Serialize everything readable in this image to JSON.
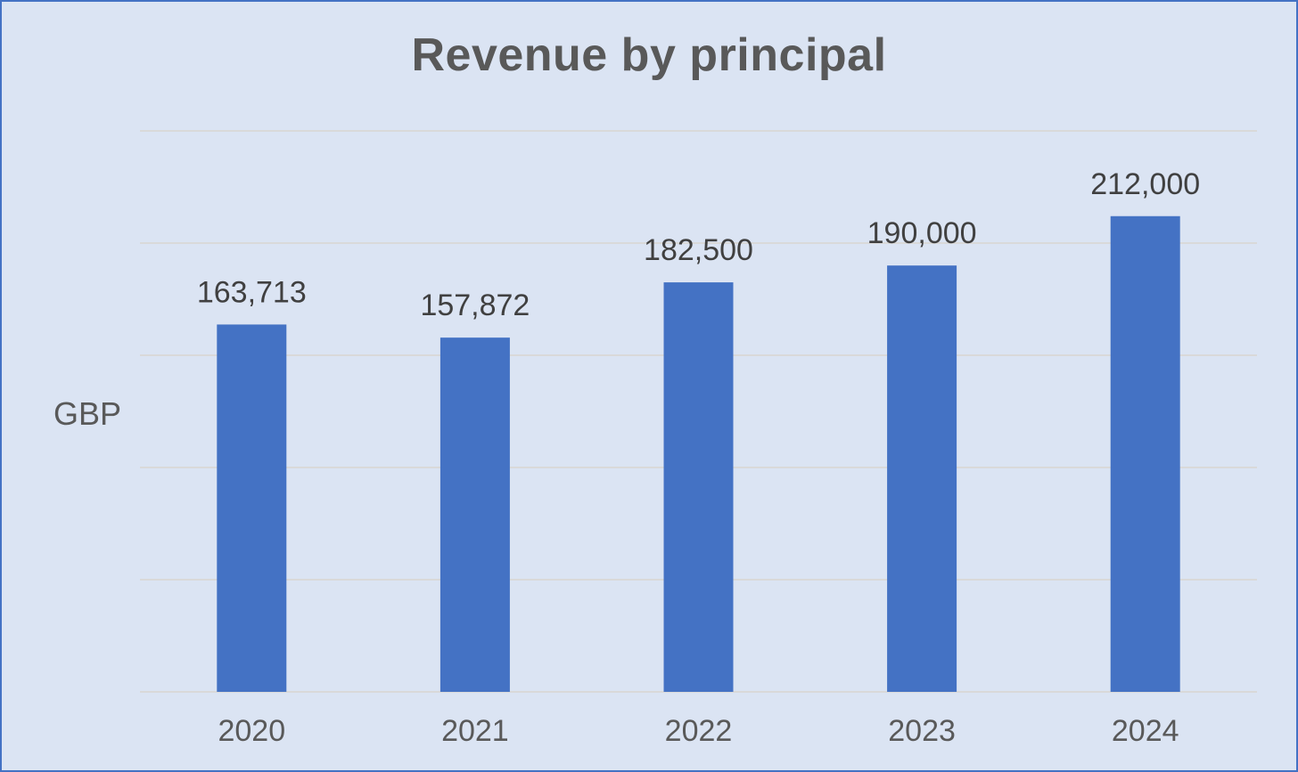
{
  "chart_data": {
    "type": "bar",
    "title": "Revenue by principal",
    "xlabel": "",
    "ylabel": "GBP",
    "categories": [
      "2020",
      "2021",
      "2022",
      "2023",
      "2024"
    ],
    "values": [
      163713,
      157872,
      182500,
      190000,
      212000
    ],
    "value_labels": [
      "163,713",
      "157,872",
      "182,500",
      "190,000",
      "212,000"
    ],
    "ylim": [
      0,
      250000
    ],
    "y_ticks": [
      0,
      50000,
      100000,
      150000,
      200000,
      250000
    ],
    "y_tick_labels_shown": false,
    "grid": true,
    "legend": "none",
    "colors": {
      "bar": "#4472c4",
      "background": "#dbe4f3",
      "border": "#4472c4",
      "grid": "#d9d9d9",
      "text": "#595959",
      "value_text": "#404040"
    }
  }
}
